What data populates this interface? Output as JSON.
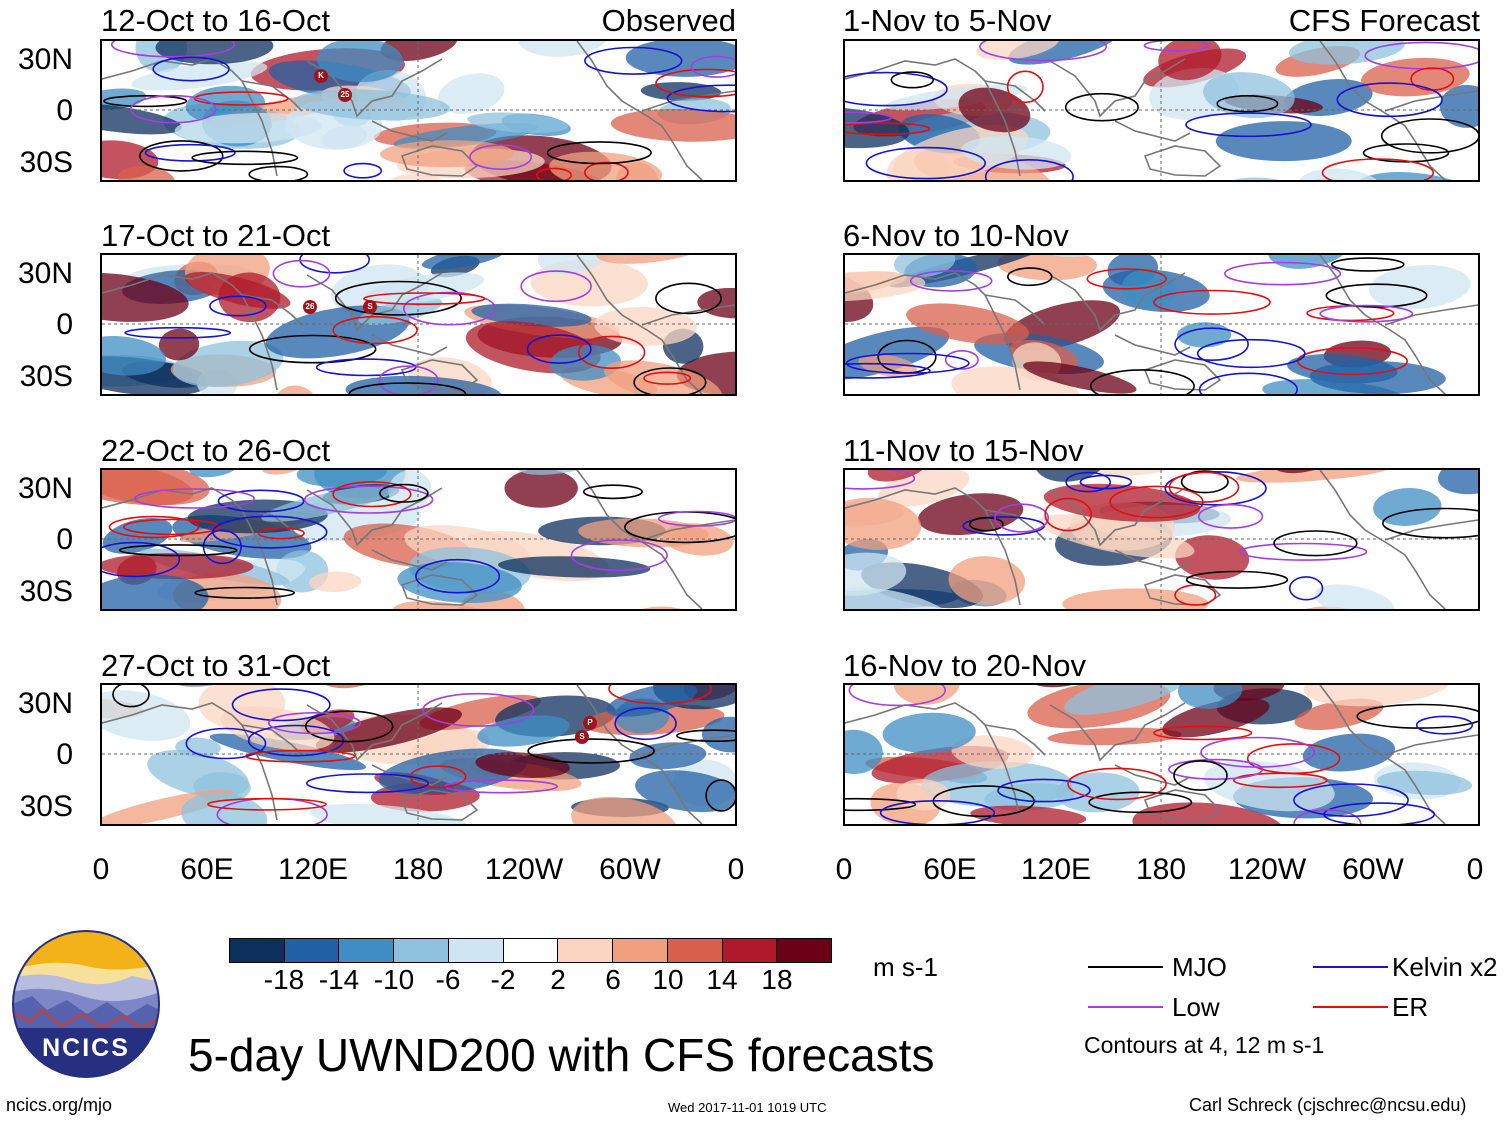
{
  "panels_left_header": "Observed",
  "panels_right_header": "CFS Forecast",
  "panels": [
    {
      "id": "p1",
      "title": "12-Oct to 16-Oct",
      "column": "left",
      "row": 0,
      "variant": 0
    },
    {
      "id": "p2",
      "title": "17-Oct to 21-Oct",
      "column": "left",
      "row": 1,
      "variant": 1
    },
    {
      "id": "p3",
      "title": "22-Oct to 26-Oct",
      "column": "left",
      "row": 2,
      "variant": 2
    },
    {
      "id": "p4",
      "title": "27-Oct to 31-Oct",
      "column": "left",
      "row": 3,
      "variant": 3
    },
    {
      "id": "p5",
      "title": "1-Nov to 5-Nov",
      "column": "right",
      "row": 0,
      "variant": 4
    },
    {
      "id": "p6",
      "title": "6-Nov to 10-Nov",
      "column": "right",
      "row": 1,
      "variant": 5
    },
    {
      "id": "p7",
      "title": "11-Nov to 15-Nov",
      "column": "right",
      "row": 2,
      "variant": 6
    },
    {
      "id": "p8",
      "title": "16-Nov to 20-Nov",
      "column": "right",
      "row": 3,
      "variant": 7
    }
  ],
  "lat_labels": [
    "30N",
    "0",
    "30S"
  ],
  "lon_labels": [
    "0",
    "60E",
    "120E",
    "180",
    "120W",
    "60W",
    "0"
  ],
  "colorbar": {
    "colors": [
      "#0d2f5e",
      "#2161a6",
      "#3f8ec3",
      "#8ec1dd",
      "#cfe5f1",
      "#ffffff",
      "#fbd5c2",
      "#f1a07f",
      "#d9604c",
      "#b0192b",
      "#6b0016"
    ],
    "ticks": [
      "-18",
      "-14",
      "-10",
      "-6",
      "-2",
      "2",
      "6",
      "10",
      "14",
      "18"
    ],
    "units": "m s-1"
  },
  "legend": {
    "items": [
      {
        "label": "MJO",
        "color": "#000000"
      },
      {
        "label": "Kelvin x2",
        "color": "#1414d2"
      },
      {
        "label": "Low",
        "color": "#a43ee0"
      },
      {
        "label": "ER",
        "color": "#e01010"
      }
    ],
    "note": "Contours at 4, 12 m s-1"
  },
  "main_title": "5-day UWND200 with CFS forecasts",
  "logo_text": "NCICS",
  "footer": {
    "left": "ncics.org/mjo",
    "center": "Wed 2017-11-01 1019 UTC",
    "right": "Carl Schreck (cjschrec@ncsu.edu)"
  },
  "storm_markers": [
    {
      "panel": "p1",
      "labels": [
        "K",
        "25"
      ]
    },
    {
      "panel": "p2",
      "labels": [
        "26",
        "S"
      ]
    },
    {
      "panel": "p4",
      "labels": [
        "P",
        "S"
      ]
    }
  ]
}
